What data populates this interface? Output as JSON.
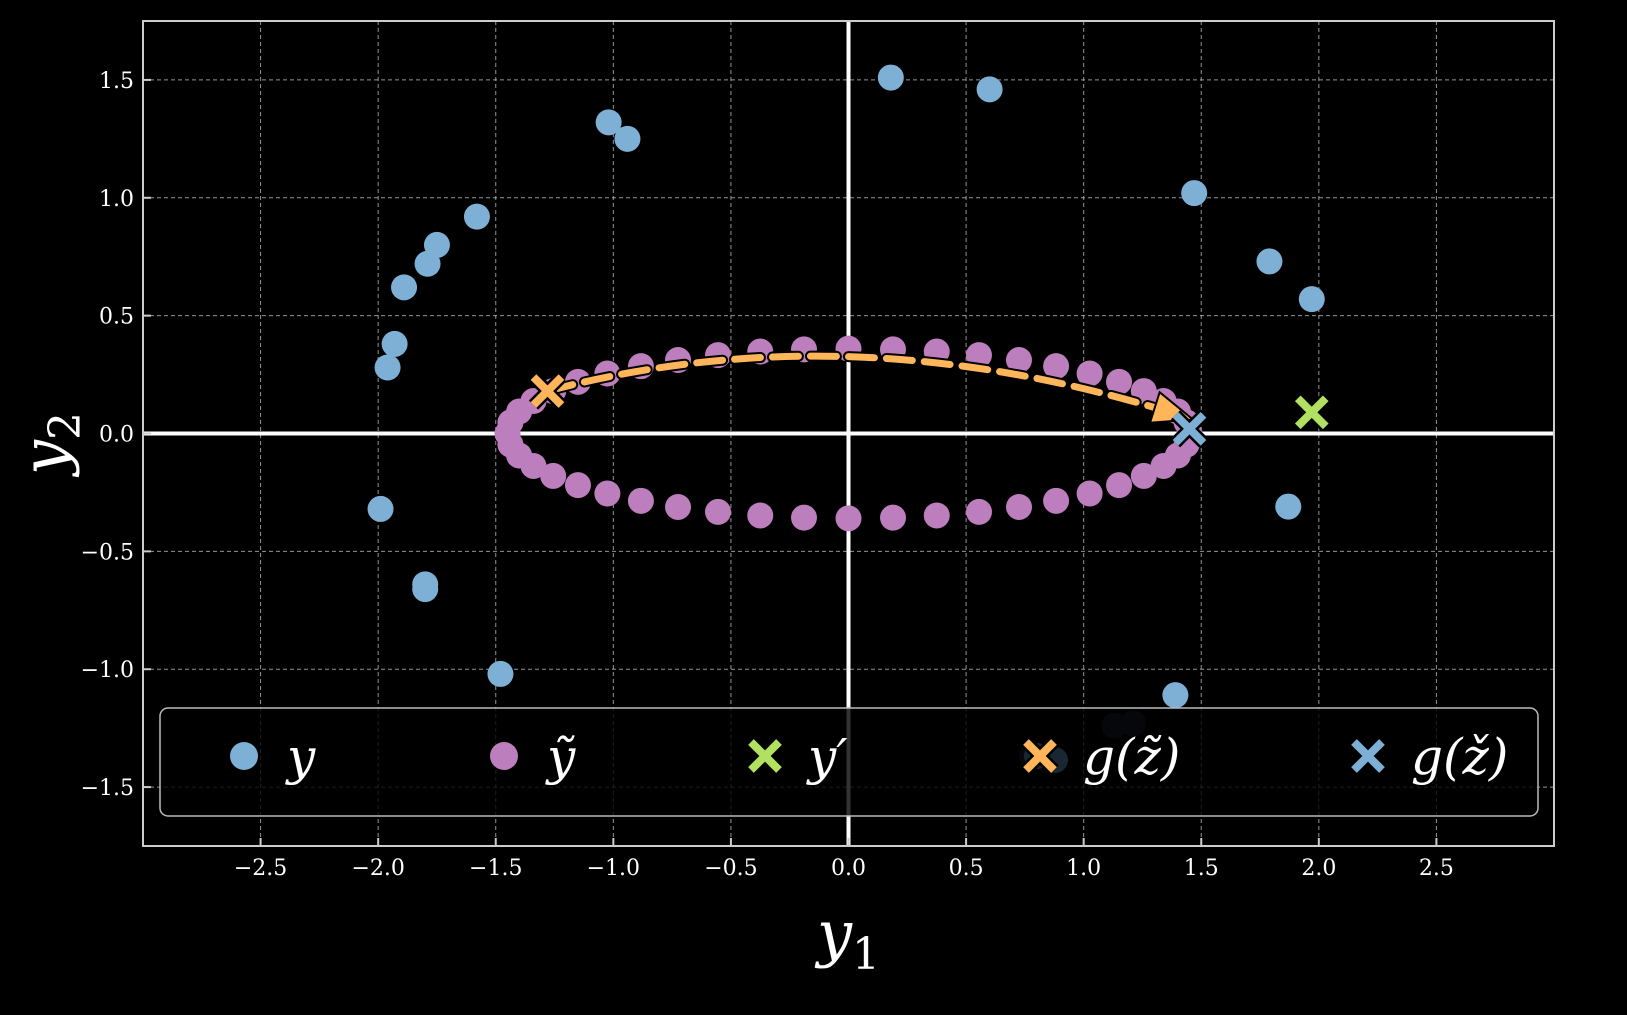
{
  "chart_data": {
    "type": "scatter",
    "title": "",
    "xlabel": "y",
    "xlabel_sub": "1",
    "ylabel": "y",
    "ylabel_sub": "2",
    "xlim": [
      -3.0,
      3.0
    ],
    "ylim": [
      -1.75,
      1.75
    ],
    "xticks": [
      -2.5,
      -2.0,
      -1.5,
      -1.0,
      -0.5,
      0.0,
      0.5,
      1.0,
      1.5,
      2.0,
      2.5
    ],
    "yticks": [
      -1.5,
      -1.0,
      -0.5,
      0.0,
      0.5,
      1.0,
      1.5
    ],
    "xtick_labels": [
      "−2.5",
      "−2.0",
      "−1.5",
      "−1.0",
      "−0.5",
      "0.0",
      "0.5",
      "1.0",
      "1.5",
      "2.0",
      "2.5"
    ],
    "ytick_labels": [
      "−1.5",
      "−1.0",
      "−0.5",
      "0.0",
      "0.5",
      "1.0",
      "1.5"
    ],
    "grid": true,
    "legend_position": "bottom",
    "colors": {
      "background": "#000000",
      "grid": "#bbbbbb",
      "blue": "#7eb0d5",
      "purple": "#bd7ebe",
      "green": "#b2e061",
      "orange": "#ffb55a",
      "dark_point": "#1a2632"
    },
    "series": [
      {
        "name": "y",
        "legend_label": "y",
        "marker": "circle",
        "color": "#7eb0d5",
        "points": [
          [
            0.18,
            1.51
          ],
          [
            0.6,
            1.46
          ],
          [
            -1.02,
            1.32
          ],
          [
            -0.94,
            1.25
          ],
          [
            1.47,
            1.02
          ],
          [
            -1.58,
            0.92
          ],
          [
            -1.75,
            0.8
          ],
          [
            -1.79,
            0.72
          ],
          [
            -1.89,
            0.62
          ],
          [
            1.79,
            0.73
          ],
          [
            1.97,
            0.57
          ],
          [
            -1.93,
            0.38
          ],
          [
            -1.96,
            0.28
          ],
          [
            -1.99,
            -0.32
          ],
          [
            1.87,
            -0.31
          ],
          [
            -1.8,
            -0.64
          ],
          [
            -1.8,
            -0.66
          ],
          [
            -1.48,
            -1.02
          ],
          [
            1.39,
            -1.11
          ]
        ]
      },
      {
        "name": "y_tilde",
        "legend_label": "ỹ",
        "marker": "circle",
        "color": "#bd7ebe",
        "ellipse": {
          "cx": 0.0,
          "cy": 0.0,
          "rx": 1.45,
          "ry": 0.36,
          "n": 48
        }
      },
      {
        "name": "y_prime",
        "legend_label": "y′",
        "marker": "x",
        "color": "#b2e061",
        "points": [
          [
            1.97,
            0.09
          ]
        ]
      },
      {
        "name": "g_z_tilde",
        "legend_label": "g(z̃)",
        "marker": "x",
        "color": "#ffb55a",
        "points": [
          [
            -1.28,
            0.18
          ]
        ]
      },
      {
        "name": "g_z_check",
        "legend_label": "g(ž)",
        "marker": "x",
        "color": "#7eb0d5",
        "points": [
          [
            1.45,
            0.02
          ]
        ]
      }
    ],
    "extra_points": {
      "color": "#1a2632",
      "points": [
        [
          1.13,
          -1.24
        ],
        [
          1.21,
          -1.23
        ],
        [
          0.78,
          -1.37
        ],
        [
          0.85,
          -1.39
        ]
      ]
    },
    "trajectory": {
      "color": "#ffb55a",
      "style": "dashed",
      "from": [
        -1.28,
        0.18
      ],
      "to": [
        1.4,
        0.08
      ],
      "arrow": true
    }
  }
}
